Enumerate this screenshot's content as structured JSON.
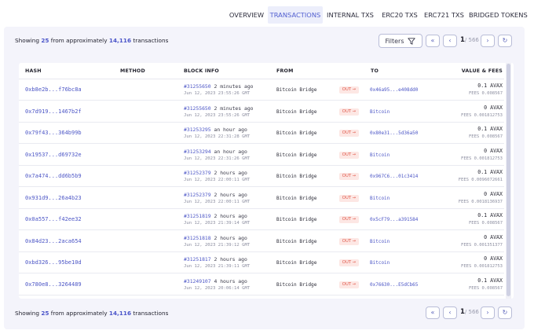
{
  "tabs": [
    {
      "label": "OVERVIEW",
      "active": false
    },
    {
      "label": "TRANSACTIONS",
      "active": true
    },
    {
      "label": "INTERNAL TXS",
      "active": false
    },
    {
      "label": "ERC20 TXS",
      "active": false
    },
    {
      "label": "ERC721 TXS",
      "active": false
    },
    {
      "label": "BRIDGED TOKENS",
      "active": false
    }
  ],
  "summary": {
    "prefix": "Showing",
    "shown": "25",
    "middle": "from approximately",
    "total": "14,116",
    "suffix": "transactions"
  },
  "filter": {
    "label": "Filters",
    "icon": "funnel-icon"
  },
  "pagination": {
    "current": "1",
    "of": "/ 566",
    "first_icon": "double-chevron-left-icon",
    "prev_icon": "chevron-left-icon",
    "next_icon": "chevron-right-icon",
    "refresh_icon": "refresh-icon"
  },
  "columns": [
    "HASH",
    "METHOD",
    "BLOCK INFO",
    "FROM",
    "TO",
    "VALUE & FEES"
  ],
  "rows": [
    {
      "hash": "0xb8e2b...f76bc8a",
      "block": "#31255650",
      "age": "2 minutes ago",
      "date": "Jun 12, 2023 23:55:26 GMT",
      "from": "Bitcoin Bridge",
      "dir": "OUT →",
      "to": "0x46a95...e408dd0",
      "value": "0.1  AVAX",
      "fees": "FEES 0.008567"
    },
    {
      "hash": "0x7d919...1467b2f",
      "block": "#31255650",
      "age": "2 minutes ago",
      "date": "Jun 12, 2023 23:55:26 GMT",
      "from": "Bitcoin Bridge",
      "dir": "OUT →",
      "to": "Bitcoin",
      "value": "0  AVAX",
      "fees": "FEES 0.001812753"
    },
    {
      "hash": "0x79f43...364b99b",
      "block": "#31253295",
      "age": "an hour ago",
      "date": "Jun 12, 2023 22:31:28 GMT",
      "from": "Bitcoin Bridge",
      "dir": "OUT →",
      "to": "0x80e31...5d36a50",
      "value": "0.1  AVAX",
      "fees": "FEES 0.008567"
    },
    {
      "hash": "0x19537...d69732e",
      "block": "#31253294",
      "age": "an hour ago",
      "date": "Jun 12, 2023 22:31:26 GMT",
      "from": "Bitcoin Bridge",
      "dir": "OUT →",
      "to": "Bitcoin",
      "value": "0  AVAX",
      "fees": "FEES 0.001812753"
    },
    {
      "hash": "0x7a474...dd6b5b9",
      "block": "#31252379",
      "age": "2 hours ago",
      "date": "Jun 12, 2023 22:00:11 GMT",
      "from": "Bitcoin Bridge",
      "dir": "OUT →",
      "to": "0x967C6...01c3414",
      "value": "0.1  AVAX",
      "fees": "FEES 0.0096072661"
    },
    {
      "hash": "0x931d9...26a4b23",
      "block": "#31252379",
      "age": "2 hours ago",
      "date": "Jun 12, 2023 22:00:11 GMT",
      "from": "Bitcoin Bridge",
      "dir": "OUT →",
      "to": "Bitcoin",
      "value": "0  AVAX",
      "fees": "FEES 0.0018136937"
    },
    {
      "hash": "0x0a557...f42ee32",
      "block": "#31251819",
      "age": "2 hours ago",
      "date": "Jun 12, 2023 21:39:14 GMT",
      "from": "Bitcoin Bridge",
      "dir": "OUT →",
      "to": "0x5cF79...a391584",
      "value": "0.1  AVAX",
      "fees": "FEES 0.008567"
    },
    {
      "hash": "0x84d23...2aca654",
      "block": "#31251818",
      "age": "2 hours ago",
      "date": "Jun 12, 2023 21:39:12 GMT",
      "from": "Bitcoin Bridge",
      "dir": "OUT →",
      "to": "Bitcoin",
      "value": "0  AVAX",
      "fees": "FEES 0.001351377"
    },
    {
      "hash": "0xbd326...95be10d",
      "block": "#31251817",
      "age": "2 hours ago",
      "date": "Jun 12, 2023 21:39:11 GMT",
      "from": "Bitcoin Bridge",
      "dir": "OUT →",
      "to": "Bitcoin",
      "value": "0  AVAX",
      "fees": "FEES 0.001812753"
    },
    {
      "hash": "0x780e8...3264489",
      "block": "#31249107",
      "age": "4 hours ago",
      "date": "Jun 12, 2023 20:06:14 GMT",
      "from": "Bitcoin Bridge",
      "dir": "OUT →",
      "to": "0x76630...E5dCb65",
      "value": "0.1  AVAX",
      "fees": "FEES 0.008567"
    }
  ],
  "colors": {
    "accent": "#4c56c6",
    "tab_active_bg": "#eceefb",
    "panel_bg": "#f4f4fb",
    "out_badge_bg": "#fde7e4",
    "out_badge_text": "#e0584a"
  }
}
